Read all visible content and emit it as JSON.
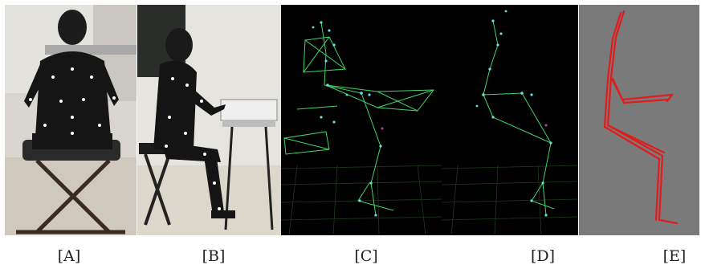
{
  "panels": [
    {
      "id": "A",
      "label": "[A]",
      "description": "motion-capture suit back view at keyboard"
    },
    {
      "id": "B",
      "label": "[B]",
      "description": "motion-capture suit side view at keyboard"
    },
    {
      "id": "C",
      "label": "[C]",
      "description": "marker skeleton with keyboard and bench wireframe"
    },
    {
      "id": "D",
      "label": "[D]",
      "description": "marker skeleton side view"
    },
    {
      "id": "E",
      "label": "[E]",
      "description": "red stick-figure model"
    }
  ],
  "colors": {
    "marker_green": "#3fd66a",
    "marker_cyan": "#66e0e0",
    "skeleton_red": "#e01c1c",
    "model_bg": "#7a7a7a"
  }
}
